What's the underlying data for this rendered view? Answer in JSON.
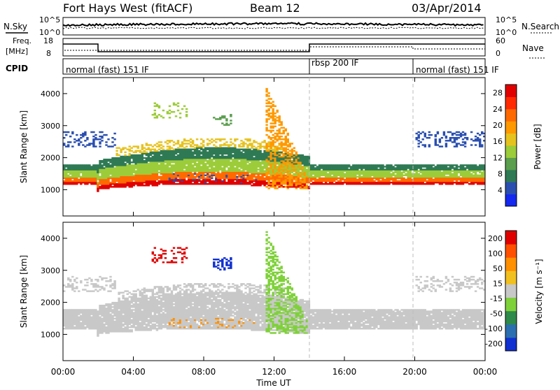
{
  "header": {
    "station": "Fort Hays West (fitACF)",
    "beam": "Beam 12",
    "date": "03/Apr/2014"
  },
  "summary_panels": {
    "nsky": {
      "label": "N.Sky",
      "right_label": "N.Search",
      "left_ticks": [
        "10^5",
        "10^0"
      ],
      "right_ticks": [
        "10^5",
        "10^0"
      ]
    },
    "freq": {
      "label": "Freq.",
      "unit": "[MHz]",
      "right_label": "Nave",
      "left_ticks": [
        "18",
        "8"
      ],
      "right_ticks": [
        "60",
        "0"
      ]
    },
    "cpid": {
      "label": "CPID",
      "modes": [
        {
          "text": "normal (fast) 151 IF",
          "start_h": 0,
          "end_h": 14
        },
        {
          "text": "rbsp 200 IF",
          "start_h": 14,
          "end_h": 19.8
        },
        {
          "text": "normal (fast) 151 IF",
          "start_h": 19.8,
          "end_h": 24
        }
      ]
    }
  },
  "chart_data": [
    {
      "type": "heatmap",
      "title": "",
      "xlabel": "",
      "ylabel": "Slant Range [km]",
      "xlim": [
        0,
        24
      ],
      "ylim": [
        180,
        4500
      ],
      "y_ticks": [
        "1000",
        "2000",
        "3000",
        "4000"
      ],
      "colorbar": {
        "label": "Power [dB]",
        "range": [
          0,
          30
        ],
        "ticks": [
          "4",
          "8",
          "12",
          "16",
          "20",
          "24",
          "28"
        ],
        "colors": [
          "#1428f0",
          "#2a4fb0",
          "#2f7a55",
          "#5a9e4e",
          "#9ccc3a",
          "#e6c21e",
          "#ff9900",
          "#ff6a00",
          "#ff2a00",
          "#e00000"
        ]
      }
    },
    {
      "type": "heatmap",
      "title": "",
      "xlabel": "Time UT",
      "ylabel": "Slant Range [km]",
      "xlim": [
        0,
        24
      ],
      "ylim": [
        180,
        4500
      ],
      "x_ticks": [
        "00:00",
        "04:00",
        "08:00",
        "12:00",
        "16:00",
        "20:00",
        "00:00"
      ],
      "y_ticks": [
        "1000",
        "2000",
        "3000",
        "4000"
      ],
      "colorbar": {
        "label": "Velocity [m s⁻¹]",
        "range": [
          -250,
          250
        ],
        "ticks": [
          "200",
          "100",
          "50",
          "15",
          "-15",
          "-50",
          "-100",
          "-200"
        ],
        "colors": [
          "#1030d0",
          "#2c6fb0",
          "#2e8a4a",
          "#7fd13a",
          "#c8c8c8",
          "#f0c020",
          "#ff9000",
          "#ff5000",
          "#e00000"
        ]
      }
    }
  ]
}
